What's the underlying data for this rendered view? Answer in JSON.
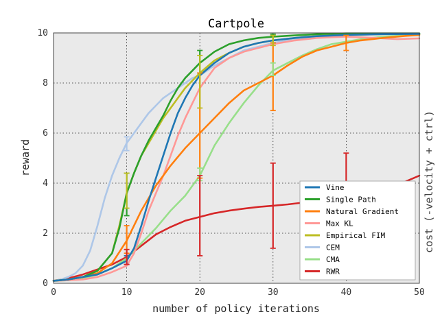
{
  "chart_data": {
    "type": "line",
    "title": "Cartpole",
    "xlabel": "number of policy iterations",
    "ylabel": "reward",
    "right_label": "cost (-velocity + ctrl)",
    "xlim": [
      0,
      50
    ],
    "ylim": [
      0,
      10
    ],
    "xticks": [
      "0",
      "10",
      "20",
      "30",
      "40",
      "50"
    ],
    "yticks": [
      "0",
      "2",
      "4",
      "6",
      "8",
      "10"
    ],
    "grid": true,
    "legend_placement": "lower-right",
    "series": [
      {
        "name": "Vine",
        "color": "#1f77b4",
        "x": [
          0,
          2,
          4,
          6,
          8,
          10,
          11,
          12,
          13,
          14,
          15,
          16,
          17,
          18,
          19,
          20,
          22,
          24,
          26,
          28,
          30,
          33,
          36,
          40,
          45,
          50
        ],
        "y": [
          0.1,
          0.15,
          0.25,
          0.35,
          0.6,
          0.9,
          1.4,
          2.3,
          3.3,
          4.2,
          5.1,
          6.0,
          6.8,
          7.4,
          7.9,
          8.3,
          8.8,
          9.2,
          9.45,
          9.6,
          9.7,
          9.8,
          9.87,
          9.92,
          9.95,
          9.96
        ],
        "errors": [
          {
            "x": 10,
            "low": 0.75,
            "high": 1.1
          }
        ]
      },
      {
        "name": "Single Path",
        "color": "#2ca02c",
        "x": [
          0,
          2,
          4,
          6,
          8,
          9,
          10,
          11,
          12,
          13,
          14,
          15,
          16,
          17,
          18,
          19,
          20,
          22,
          24,
          26,
          28,
          30,
          33,
          36,
          40,
          45,
          50
        ],
        "y": [
          0.1,
          0.15,
          0.25,
          0.5,
          1.2,
          2.2,
          3.6,
          4.4,
          5.1,
          5.7,
          6.2,
          6.7,
          7.3,
          7.8,
          8.2,
          8.5,
          8.8,
          9.25,
          9.55,
          9.7,
          9.8,
          9.85,
          9.9,
          9.95,
          9.98,
          9.98,
          9.98
        ],
        "errors": [
          {
            "x": 10,
            "low": 2.7,
            "high": 4.4
          },
          {
            "x": 20,
            "low": 8.4,
            "high": 9.3
          },
          {
            "x": 30,
            "low": 9.6,
            "high": 9.95
          }
        ]
      },
      {
        "name": "Natural Gradient",
        "color": "#ff7f0e",
        "x": [
          0,
          2,
          4,
          6,
          8,
          10,
          12,
          14,
          16,
          18,
          20,
          22,
          24,
          26,
          28,
          30,
          32,
          34,
          36,
          38,
          40,
          42,
          45,
          48,
          50
        ],
        "y": [
          0.1,
          0.15,
          0.25,
          0.4,
          0.8,
          1.7,
          2.9,
          3.9,
          4.7,
          5.4,
          6.0,
          6.6,
          7.2,
          7.7,
          8.0,
          8.3,
          8.7,
          9.05,
          9.3,
          9.45,
          9.6,
          9.7,
          9.8,
          9.88,
          9.92
        ],
        "errors": [
          {
            "x": 10,
            "low": 1.2,
            "high": 2.3
          },
          {
            "x": 20,
            "low": 4.2,
            "high": 8.4
          },
          {
            "x": 30,
            "low": 6.9,
            "high": 9.6
          },
          {
            "x": 40,
            "low": 9.3,
            "high": 9.9
          }
        ]
      },
      {
        "name": "Max KL",
        "color": "#ff9896",
        "x": [
          0,
          2,
          4,
          6,
          8,
          10,
          11,
          12,
          13,
          14,
          15,
          16,
          17,
          18,
          19,
          20,
          21,
          22,
          24,
          26,
          28,
          30,
          33,
          36,
          40,
          44,
          47,
          50
        ],
        "y": [
          0.1,
          0.12,
          0.15,
          0.25,
          0.45,
          0.7,
          1.2,
          2.0,
          2.9,
          3.6,
          4.3,
          5.1,
          5.9,
          6.6,
          7.2,
          7.8,
          8.2,
          8.6,
          9.0,
          9.25,
          9.4,
          9.55,
          9.7,
          9.8,
          9.85,
          9.8,
          9.75,
          9.78
        ],
        "errors": []
      },
      {
        "name": "Empirical FIM",
        "color": "#bcbd22",
        "x": [
          0,
          2,
          4,
          6,
          8,
          9,
          10,
          11,
          12,
          13,
          14,
          15,
          16,
          17,
          18,
          19,
          20,
          22,
          24,
          26,
          28,
          30,
          33,
          36,
          40,
          45,
          50
        ],
        "y": [
          0.1,
          0.15,
          0.25,
          0.5,
          1.2,
          2.3,
          3.6,
          4.4,
          5.1,
          5.6,
          6.1,
          6.6,
          7.0,
          7.4,
          7.8,
          8.1,
          8.4,
          8.9,
          9.2,
          9.45,
          9.6,
          9.7,
          9.8,
          9.88,
          9.92,
          9.95,
          9.96
        ],
        "errors": [
          {
            "x": 10,
            "low": 3.0,
            "high": 4.4
          },
          {
            "x": 20,
            "low": 7.0,
            "high": 9.1
          },
          {
            "x": 30,
            "low": 9.5,
            "high": 9.9
          }
        ]
      },
      {
        "name": "CEM",
        "color": "#aec7e8",
        "x": [
          0,
          1,
          2,
          3,
          4,
          5,
          6,
          7,
          8,
          9,
          10,
          11,
          12,
          13,
          14,
          15,
          16,
          17,
          18,
          19,
          20,
          22,
          24,
          26,
          28,
          30,
          33,
          36,
          40,
          45,
          50
        ],
        "y": [
          0.1,
          0.15,
          0.25,
          0.4,
          0.7,
          1.3,
          2.3,
          3.4,
          4.3,
          5.0,
          5.6,
          6.0,
          6.4,
          6.8,
          7.1,
          7.4,
          7.6,
          7.8,
          8.0,
          8.2,
          8.3,
          8.7,
          9.0,
          9.3,
          9.45,
          9.6,
          9.75,
          9.85,
          9.9,
          9.95,
          9.96
        ],
        "errors": [
          {
            "x": 10,
            "low": 5.3,
            "high": 5.85
          }
        ]
      },
      {
        "name": "CMA",
        "color": "#98df8a",
        "x": [
          0,
          2,
          4,
          6,
          8,
          10,
          12,
          14,
          16,
          18,
          19,
          20,
          21,
          22,
          24,
          26,
          28,
          30,
          32,
          34,
          36,
          38,
          40,
          42,
          45,
          48,
          50
        ],
        "y": [
          0.1,
          0.12,
          0.2,
          0.35,
          0.6,
          1.0,
          1.6,
          2.2,
          2.9,
          3.5,
          3.9,
          4.3,
          4.9,
          5.5,
          6.4,
          7.2,
          7.9,
          8.5,
          8.8,
          9.1,
          9.35,
          9.55,
          9.65,
          9.75,
          9.85,
          9.9,
          9.92
        ],
        "errors": [
          {
            "x": 20,
            "low": 4.1,
            "high": 4.6
          },
          {
            "x": 30,
            "low": 8.3,
            "high": 8.8
          }
        ]
      },
      {
        "name": "RWR",
        "color": "#d62728",
        "x": [
          0,
          2,
          4,
          6,
          8,
          10,
          12,
          14,
          16,
          18,
          20,
          22,
          24,
          26,
          28,
          30,
          32,
          34,
          36,
          38,
          40,
          42,
          44,
          46,
          48,
          50
        ],
        "y": [
          0.1,
          0.2,
          0.35,
          0.55,
          0.75,
          1.05,
          1.5,
          1.95,
          2.25,
          2.5,
          2.65,
          2.8,
          2.9,
          2.98,
          3.05,
          3.1,
          3.15,
          3.22,
          3.3,
          3.38,
          3.45,
          3.55,
          3.65,
          3.85,
          4.05,
          4.3
        ],
        "errors": [
          {
            "x": 10,
            "low": 0.75,
            "high": 1.35
          },
          {
            "x": 20,
            "low": 1.1,
            "high": 4.3
          },
          {
            "x": 30,
            "low": 1.4,
            "high": 4.8
          },
          {
            "x": 40,
            "low": 2.0,
            "high": 5.2
          }
        ]
      }
    ]
  }
}
